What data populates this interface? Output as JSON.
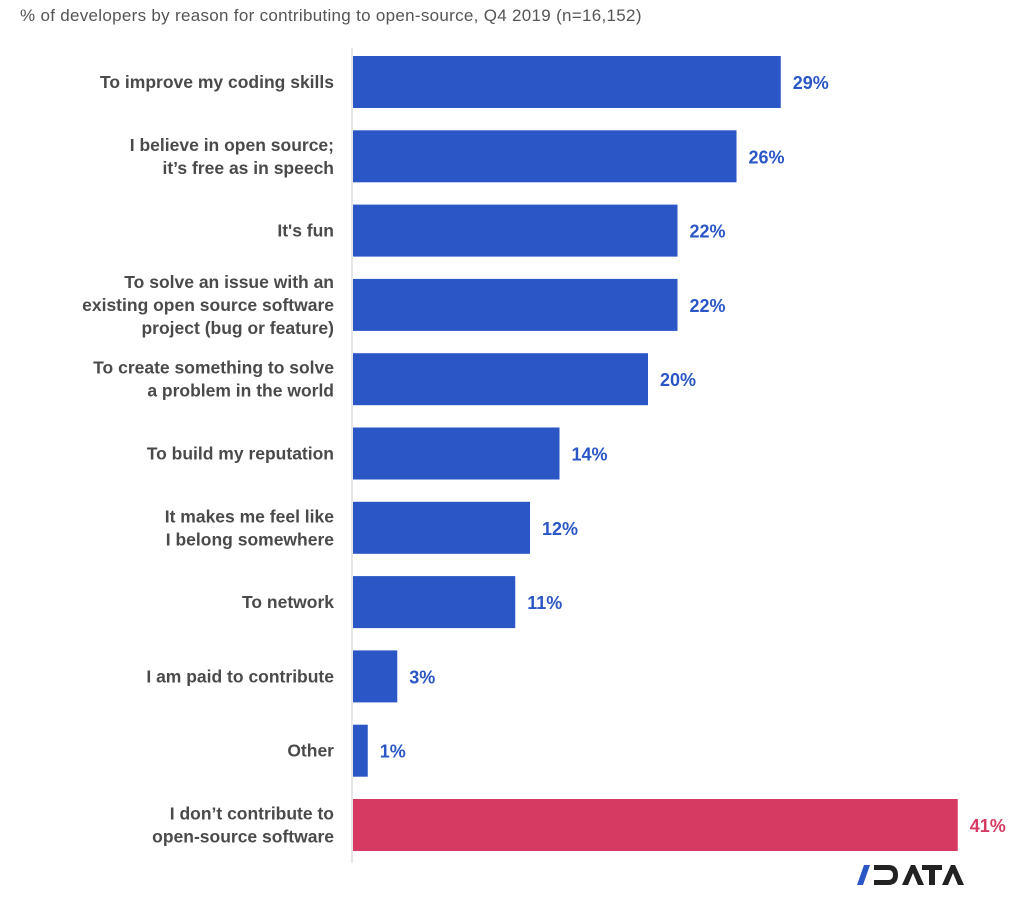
{
  "chart_data": {
    "type": "bar",
    "orientation": "horizontal",
    "title": "% of developers by reason for contributing to open-source, Q4 2019 (n=16,152)",
    "categories": [
      [
        "To improve my coding skills"
      ],
      [
        "I believe in open source;",
        "it’s free as in speech"
      ],
      [
        "It's fun"
      ],
      [
        "To solve an issue with an",
        "existing open source software",
        "project (bug or feature)"
      ],
      [
        "To create something to solve",
        "a problem in the world"
      ],
      [
        "To build my reputation"
      ],
      [
        "It makes me feel like",
        "I belong somewhere"
      ],
      [
        "To network"
      ],
      [
        "I am paid to contribute"
      ],
      [
        "Other"
      ],
      [
        "I don’t contribute to",
        "open-source software"
      ]
    ],
    "values": [
      29,
      26,
      22,
      22,
      20,
      14,
      12,
      11,
      3,
      1,
      41
    ],
    "value_labels": [
      "29%",
      "26%",
      "22%",
      "22%",
      "20%",
      "14%",
      "12%",
      "11%",
      "3%",
      "1%",
      "41%"
    ],
    "colors": [
      "#2a56c6",
      "#2a56c6",
      "#2a56c6",
      "#2a56c6",
      "#2a56c6",
      "#2a56c6",
      "#2a56c6",
      "#2a56c6",
      "#2a56c6",
      "#2a56c6",
      "#d63a62"
    ],
    "xlim": [
      0,
      45
    ],
    "grid": false
  },
  "logo": {
    "text": "/DATA",
    "slash_color": "#2a56c6",
    "text_color": "#222222"
  }
}
